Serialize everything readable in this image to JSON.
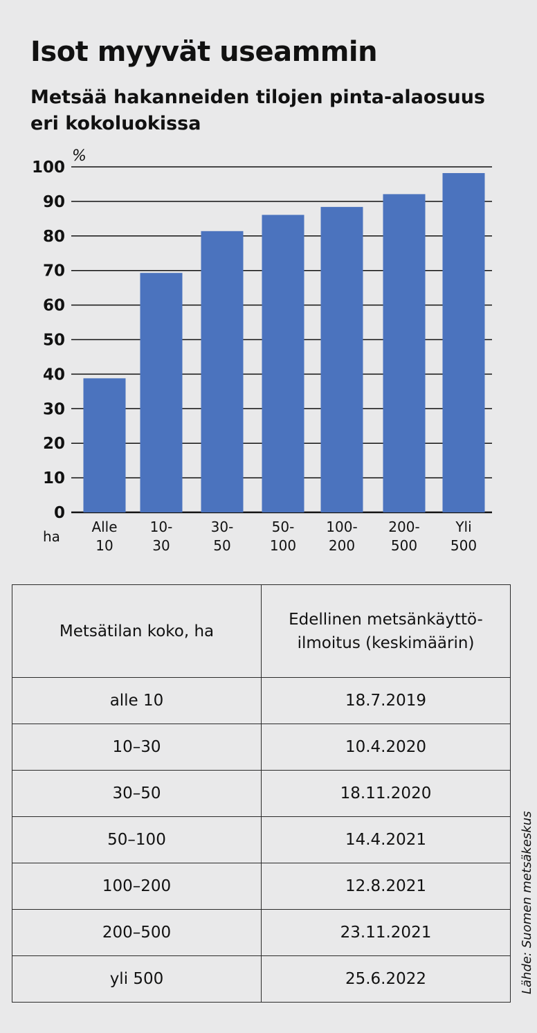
{
  "title": "Isot myyvät useammin",
  "subtitle": "Metsää hakanneiden tilojen pinta-alaosuus eri kokoluokissa",
  "chart_data": {
    "type": "bar",
    "title": "Isot myyvät useammin",
    "subtitle": "Metsää hakanneiden tilojen pinta-alaosuus eri kokoluokissa",
    "xlabel": "ha",
    "ylabel": "%",
    "categories": [
      [
        "Alle",
        "10"
      ],
      [
        "10-",
        "30"
      ],
      [
        "30-",
        "50"
      ],
      [
        "50-",
        "100"
      ],
      [
        "100-",
        "200"
      ],
      [
        "200-",
        "500"
      ],
      [
        "Yli",
        "500"
      ]
    ],
    "values": [
      38.8,
      69.3,
      81.4,
      86.1,
      88.4,
      92.1,
      98.2
    ],
    "ylim": [
      0,
      100
    ],
    "yticks": [
      "0",
      "10",
      "20",
      "30",
      "40",
      "50",
      "60",
      "70",
      "80",
      "90",
      "100"
    ],
    "grid": true,
    "color": "#4b73be"
  },
  "table": {
    "headers": [
      "Metsätilan koko, ha",
      "Edellinen metsänkäyttö-\nilmoitus (keskimäärin)"
    ],
    "rows": [
      [
        "alle 10",
        "18.7.2019"
      ],
      [
        "10–30",
        "10.4.2020"
      ],
      [
        "30–50",
        "18.11.2020"
      ],
      [
        "50–100",
        "14.4.2021"
      ],
      [
        "100–200",
        "12.8.2021"
      ],
      [
        "200–500",
        "23.11.2021"
      ],
      [
        "yli 500",
        "25.6.2022"
      ]
    ]
  },
  "source": "Lähde: Suomen metsäkeskus"
}
